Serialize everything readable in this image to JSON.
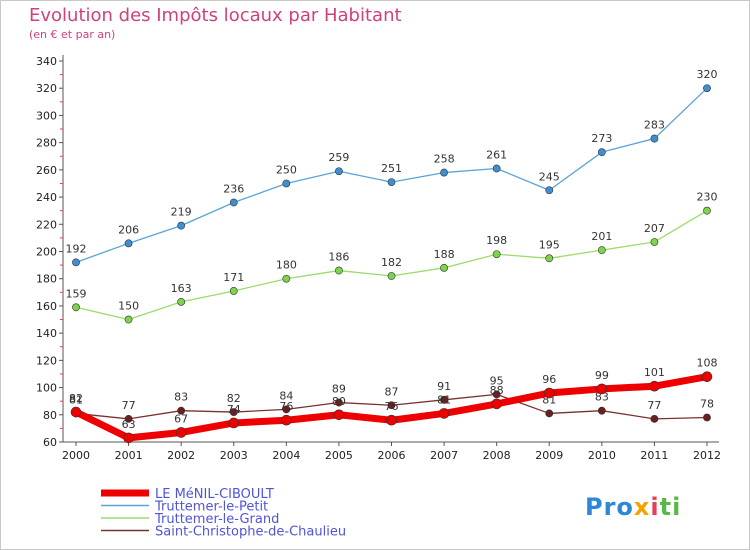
{
  "title": "Evolution des Impôts locaux par Habitant",
  "subtitle": "(en € et par an)",
  "logo": {
    "parts": [
      "Pro",
      "x",
      "i",
      "ti"
    ]
  },
  "chart_data": {
    "type": "line",
    "title": "Evolution des Impôts locaux par Habitant",
    "subtitle": "(en € et par an)",
    "x": [
      2000,
      2001,
      2002,
      2003,
      2004,
      2005,
      2006,
      2007,
      2008,
      2009,
      2010,
      2011,
      2012
    ],
    "ylim": [
      60,
      340
    ],
    "yticks": [
      60,
      80,
      100,
      120,
      140,
      160,
      180,
      200,
      220,
      240,
      260,
      280,
      300,
      320,
      340
    ],
    "grid": false,
    "legend_position": "bottom-left",
    "series": [
      {
        "name": "Truttemer-le-Petit",
        "color": "#5aa3d8",
        "marker": "#3f8fd0",
        "width": 1.3,
        "values": [
          192,
          206,
          219,
          236,
          250,
          259,
          251,
          258,
          261,
          245,
          273,
          283,
          320
        ]
      },
      {
        "name": "Truttemer-le-Grand",
        "color": "#9bdc6a",
        "marker": "#7fd34b",
        "width": 1.3,
        "values": [
          159,
          150,
          163,
          171,
          180,
          186,
          182,
          188,
          198,
          195,
          201,
          207,
          230
        ]
      },
      {
        "name": "Saint-Christophe-de-Chaulieu",
        "color": "#7a3131",
        "marker": "#6b1f1f",
        "width": 1.3,
        "values": [
          81,
          77,
          83,
          82,
          84,
          89,
          87,
          91,
          95,
          81,
          83,
          77,
          78
        ]
      },
      {
        "name": "LE MéNIL-CIBOULT",
        "color": "#ee0000",
        "marker": "#ee0000",
        "width": 7,
        "values": [
          82,
          63,
          67,
          74,
          76,
          80,
          76,
          81,
          88,
          96,
          99,
          101,
          108
        ]
      }
    ],
    "legend_order": [
      "LE MéNIL-CIBOULT",
      "Truttemer-le-Petit",
      "Truttemer-le-Grand",
      "Saint-Christophe-de-Chaulieu"
    ]
  }
}
